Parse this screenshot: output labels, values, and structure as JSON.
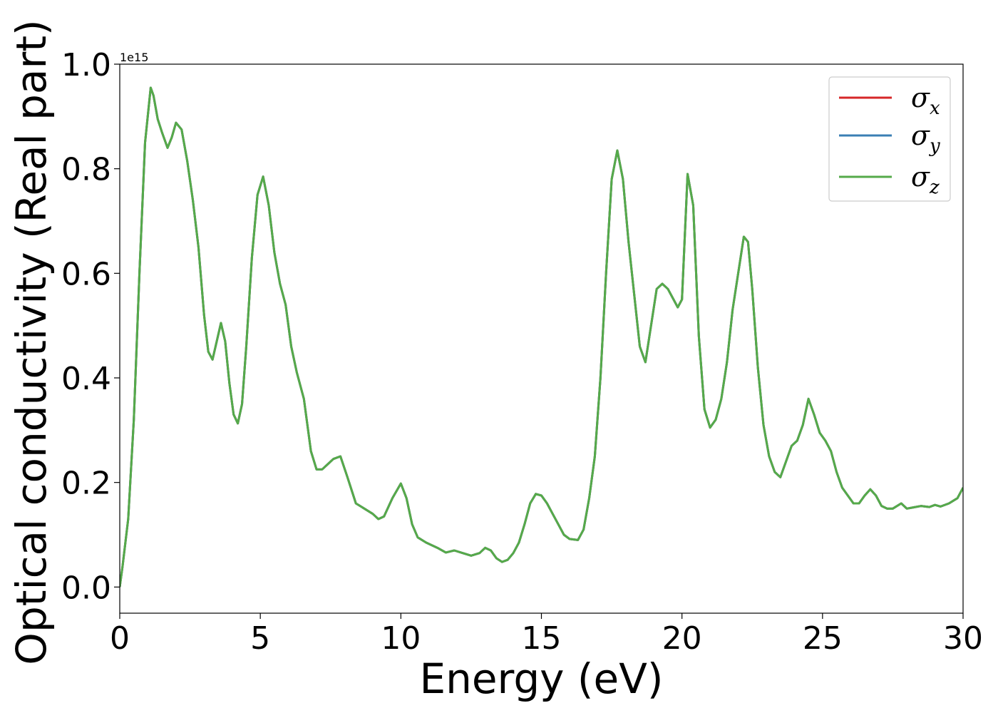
{
  "chart_data": {
    "type": "line",
    "xlabel": "Energy (eV)",
    "ylabel": "Optical conductivity (Real part)",
    "offset_text": "1e15",
    "y_scale_factor": 1000000000000000.0,
    "xlim": [
      0,
      30
    ],
    "ylim": [
      -0.05,
      1.0
    ],
    "x_ticks": [
      0,
      5,
      10,
      15,
      20,
      25,
      30
    ],
    "x_tick_labels": [
      "0",
      "5",
      "10",
      "15",
      "20",
      "25",
      "30"
    ],
    "y_ticks": [
      0.0,
      0.2,
      0.4,
      0.6,
      0.8,
      1.0
    ],
    "y_tick_labels": [
      "0.0",
      "0.2",
      "0.4",
      "0.6",
      "0.8",
      "1.0"
    ],
    "grid": false,
    "legend_position": "top-right",
    "series": [
      {
        "name": "σx",
        "label_main": "σ",
        "label_sub": "x",
        "color": "#d62728"
      },
      {
        "name": "σy",
        "label_main": "σ",
        "label_sub": "y",
        "color": "#3a7fb4"
      },
      {
        "name": "σz",
        "label_main": "σ",
        "label_sub": "z",
        "color": "#55aa4a"
      }
    ],
    "x": [
      0,
      0.1,
      0.3,
      0.5,
      0.7,
      0.9,
      1.1,
      1.2,
      1.35,
      1.5,
      1.7,
      1.85,
      2.0,
      2.2,
      2.4,
      2.6,
      2.8,
      3.0,
      3.15,
      3.3,
      3.45,
      3.6,
      3.75,
      3.9,
      4.05,
      4.2,
      4.35,
      4.5,
      4.7,
      4.9,
      5.1,
      5.3,
      5.5,
      5.7,
      5.9,
      6.1,
      6.3,
      6.55,
      6.8,
      7.0,
      7.2,
      7.4,
      7.6,
      7.85,
      8.1,
      8.4,
      8.7,
      9.0,
      9.2,
      9.4,
      9.7,
      10.0,
      10.2,
      10.4,
      10.6,
      10.9,
      11.3,
      11.6,
      11.9,
      12.2,
      12.5,
      12.8,
      13.0,
      13.2,
      13.4,
      13.6,
      13.8,
      14.0,
      14.2,
      14.4,
      14.6,
      14.8,
      15.0,
      15.2,
      15.4,
      15.6,
      15.8,
      16.0,
      16.3,
      16.5,
      16.7,
      16.9,
      17.1,
      17.3,
      17.5,
      17.7,
      17.9,
      18.1,
      18.3,
      18.5,
      18.7,
      18.9,
      19.1,
      19.3,
      19.5,
      19.7,
      19.85,
      20.0,
      20.2,
      20.4,
      20.6,
      20.8,
      21.0,
      21.2,
      21.4,
      21.6,
      21.8,
      22.0,
      22.2,
      22.35,
      22.5,
      22.7,
      22.9,
      23.1,
      23.3,
      23.5,
      23.7,
      23.9,
      24.1,
      24.3,
      24.5,
      24.7,
      24.9,
      25.1,
      25.3,
      25.5,
      25.7,
      25.9,
      26.1,
      26.3,
      26.5,
      26.7,
      26.9,
      27.1,
      27.3,
      27.5,
      27.8,
      28.0,
      28.2,
      28.5,
      28.8,
      29.0,
      29.2,
      29.5,
      29.8,
      30.0
    ],
    "y": [
      0.0,
      0.04,
      0.13,
      0.32,
      0.6,
      0.85,
      0.955,
      0.94,
      0.895,
      0.87,
      0.84,
      0.86,
      0.888,
      0.875,
      0.815,
      0.74,
      0.65,
      0.52,
      0.45,
      0.435,
      0.47,
      0.505,
      0.47,
      0.39,
      0.33,
      0.313,
      0.35,
      0.46,
      0.63,
      0.75,
      0.785,
      0.73,
      0.64,
      0.58,
      0.54,
      0.46,
      0.41,
      0.36,
      0.26,
      0.225,
      0.225,
      0.235,
      0.245,
      0.25,
      0.21,
      0.16,
      0.15,
      0.14,
      0.13,
      0.135,
      0.17,
      0.198,
      0.17,
      0.12,
      0.095,
      0.085,
      0.075,
      0.066,
      0.07,
      0.065,
      0.06,
      0.065,
      0.075,
      0.07,
      0.055,
      0.048,
      0.052,
      0.065,
      0.085,
      0.12,
      0.16,
      0.178,
      0.175,
      0.16,
      0.14,
      0.12,
      0.1,
      0.092,
      0.09,
      0.11,
      0.17,
      0.25,
      0.4,
      0.6,
      0.78,
      0.835,
      0.78,
      0.66,
      0.56,
      0.46,
      0.43,
      0.5,
      0.57,
      0.58,
      0.57,
      0.55,
      0.535,
      0.55,
      0.79,
      0.73,
      0.48,
      0.34,
      0.305,
      0.32,
      0.36,
      0.43,
      0.53,
      0.6,
      0.67,
      0.66,
      0.57,
      0.42,
      0.31,
      0.25,
      0.22,
      0.21,
      0.24,
      0.27,
      0.28,
      0.31,
      0.36,
      0.33,
      0.295,
      0.28,
      0.26,
      0.22,
      0.19,
      0.175,
      0.16,
      0.16,
      0.175,
      0.187,
      0.175,
      0.155,
      0.15,
      0.15,
      0.16,
      0.15,
      0.152,
      0.155,
      0.153,
      0.157,
      0.154,
      0.16,
      0.17,
      0.19
    ]
  }
}
